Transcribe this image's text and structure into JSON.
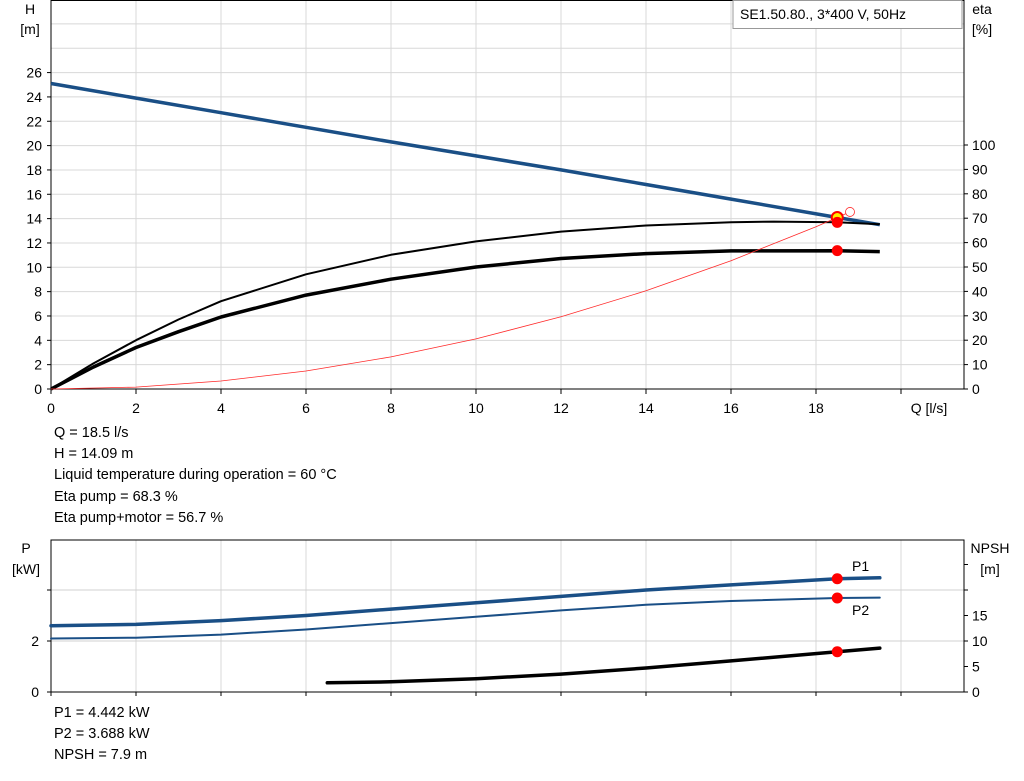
{
  "chart_data": [
    {
      "type": "line",
      "xlabel": "Q [l/s]",
      "ylabel_left": [
        "H",
        "[m]"
      ],
      "ylabel_right": [
        "eta",
        "[%]"
      ],
      "xlim": [
        0,
        21.5
      ],
      "ylim_left": [
        0,
        32
      ],
      "ylim_right": [
        0,
        131
      ],
      "x_ticks": [
        0,
        2,
        4,
        6,
        8,
        10,
        12,
        14,
        16,
        18
      ],
      "y_left_ticks": [
        0,
        2,
        4,
        6,
        8,
        10,
        12,
        14,
        16,
        18,
        20,
        22,
        24,
        26
      ],
      "y_right_ticks": [
        0,
        10,
        20,
        30,
        40,
        50,
        60,
        70,
        80,
        90,
        100
      ],
      "grid": true,
      "legend": {
        "text": "SE1.50.80., 3*400 V, 50Hz",
        "placement": "top-right"
      },
      "colors": {
        "head": "#1a4f86",
        "eta": "#000000",
        "system": "#ff2a2a",
        "point": "#ff0000",
        "duty": "#ffee00"
      },
      "series": [
        {
          "key": "head",
          "axis": "left",
          "x": [
            0,
            2,
            4,
            6,
            8,
            10,
            12,
            14,
            16,
            18.5,
            19.5
          ],
          "y": [
            25.1,
            23.9,
            22.7,
            21.5,
            20.3,
            19.15,
            18.0,
            16.8,
            15.6,
            14.09,
            13.5
          ]
        },
        {
          "key": "eta_pump",
          "axis": "right",
          "x": [
            0,
            1,
            2,
            3,
            4,
            6,
            8,
            10,
            12,
            14,
            16,
            17,
            18.5,
            19.5
          ],
          "y": [
            0,
            10.5,
            20,
            28.5,
            36,
            47,
            55,
            60.5,
            64.5,
            67,
            68.3,
            68.6,
            68.3,
            67.5
          ]
        },
        {
          "key": "eta_pump_motor",
          "axis": "right",
          "x": [
            0,
            1,
            2,
            3,
            4,
            6,
            8,
            10,
            12,
            14,
            16,
            18.5,
            19.5
          ],
          "y": [
            0,
            9,
            17,
            23.5,
            29.5,
            38.5,
            45,
            50,
            53.5,
            55.5,
            56.6,
            56.7,
            56.3
          ]
        },
        {
          "key": "system",
          "axis": "left",
          "x": [
            0,
            2,
            4,
            6,
            8,
            10,
            12,
            14,
            16,
            18,
            18.8
          ],
          "y": [
            0,
            0.16,
            0.66,
            1.48,
            2.64,
            4.12,
            5.93,
            8.07,
            10.54,
            13.34,
            14.55
          ]
        }
      ],
      "points": [
        {
          "key": "duty",
          "x": 18.5,
          "y": 14.09,
          "axis": "left"
        },
        {
          "key": "eta_pump",
          "x": 18.5,
          "y": 68.3,
          "axis": "right"
        },
        {
          "key": "eta_pump_motor",
          "x": 18.5,
          "y": 56.7,
          "axis": "right"
        }
      ]
    },
    {
      "type": "line",
      "ylabel_left": [
        "P",
        "[kW]"
      ],
      "ylabel_right": [
        "NPSH",
        "[m]"
      ],
      "xlim": [
        0,
        21.5
      ],
      "ylim_left": [
        0,
        6
      ],
      "ylim_right": [
        0,
        30
      ],
      "y_left_ticks": [
        0,
        2
      ],
      "y_right_ticks": [
        0,
        5,
        10,
        15
      ],
      "grid": true,
      "series": [
        {
          "key": "P1",
          "name": "P1",
          "axis": "left",
          "x": [
            0,
            2,
            4,
            6,
            8,
            10,
            12,
            14,
            16,
            18.5,
            19.5
          ],
          "y": [
            2.6,
            2.65,
            2.8,
            3.0,
            3.25,
            3.5,
            3.75,
            4.0,
            4.2,
            4.442,
            4.48
          ]
        },
        {
          "key": "P2",
          "name": "P2",
          "axis": "left",
          "x": [
            0,
            2,
            4,
            6,
            8,
            10,
            12,
            14,
            16,
            18.5,
            19.5
          ],
          "y": [
            2.1,
            2.13,
            2.25,
            2.45,
            2.7,
            2.95,
            3.2,
            3.42,
            3.57,
            3.688,
            3.7
          ]
        },
        {
          "key": "NPSH",
          "axis": "right",
          "x": [
            6.5,
            8,
            10,
            12,
            14,
            16,
            18.5,
            19.5
          ],
          "y": [
            1.8,
            2.0,
            2.6,
            3.5,
            4.7,
            6.1,
            7.9,
            8.6
          ]
        }
      ],
      "points": [
        {
          "key": "P1",
          "x": 18.5,
          "y": 4.442,
          "axis": "left"
        },
        {
          "key": "P2",
          "x": 18.5,
          "y": 3.688,
          "axis": "left"
        },
        {
          "key": "NPSH",
          "x": 18.5,
          "y": 7.9,
          "axis": "right"
        }
      ]
    }
  ],
  "info_top": [
    "Q = 18.5 l/s",
    "H = 14.09 m",
    "Liquid temperature during operation = 60 °C",
    "Eta pump = 68.3 %",
    "Eta pump+motor = 56.7 %"
  ],
  "info_bottom": [
    "P1 = 4.442 kW",
    "P2 = 3.688 kW",
    "NPSH = 7.9 m"
  ]
}
